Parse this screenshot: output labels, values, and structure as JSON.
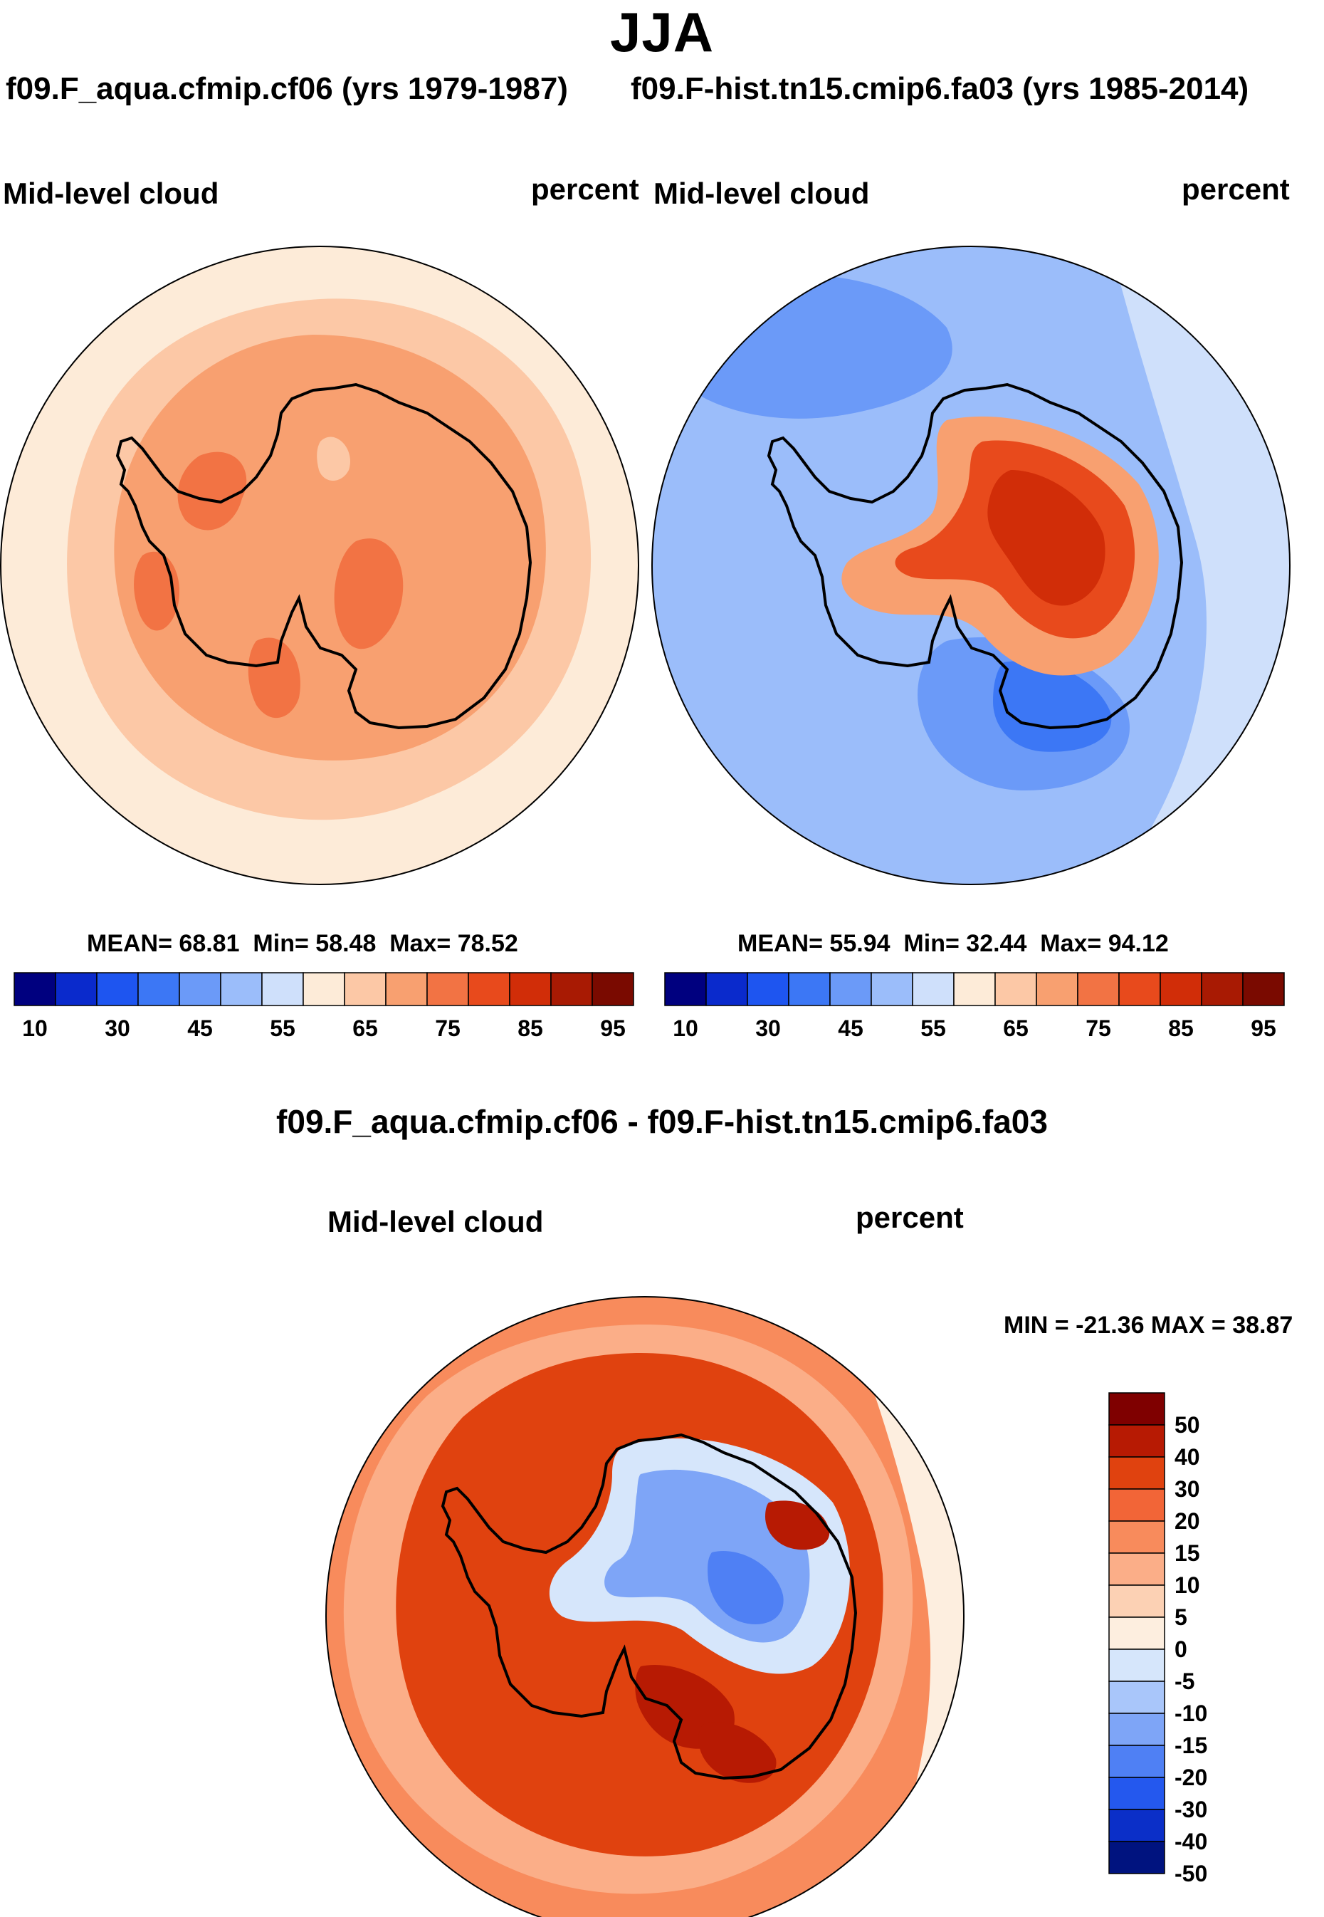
{
  "season": "JJA",
  "panels": {
    "top_left": {
      "case_title": "f09.F_aqua.cfmip.cf06 (yrs 1979-1987)",
      "variable": "Mid-level cloud",
      "units": "percent",
      "stats": {
        "mean_label": "MEAN=",
        "mean": "68.81",
        "min_label": "Min=",
        "min": "58.48",
        "max_label": "Max=",
        "max": "78.52"
      }
    },
    "top_right": {
      "case_title": "f09.F-hist.tn15.cmip6.fa03 (yrs 1985-2014)",
      "variable": "Mid-level cloud",
      "units": "percent",
      "stats": {
        "mean_label": "MEAN=",
        "mean": "55.94",
        "min_label": "Min=",
        "min": "32.44",
        "max_label": "Max=",
        "max": "94.12"
      }
    },
    "bottom": {
      "case_title": "f09.F_aqua.cfmip.cf06 - f09.F-hist.tn15.cmip6.fa03",
      "variable": "Mid-level cloud",
      "units": "percent",
      "stats_text": "MIN = -21.36 MAX =  38.87"
    }
  },
  "abs_colorbar": {
    "labels": [
      "10",
      "30",
      "45",
      "55",
      "65",
      "75",
      "85",
      "95"
    ],
    "colors": [
      "#00007f",
      "#0a2acc",
      "#1e55f0",
      "#3c77f5",
      "#6b9af8",
      "#9bbdfa",
      "#cfe0fb",
      "#fdebd8",
      "#fcc8a6",
      "#f8a070",
      "#f27344",
      "#e84a1c",
      "#d12d08",
      "#a81a03",
      "#7a0a00"
    ]
  },
  "diff_colorbar": {
    "labels": [
      "50",
      "40",
      "30",
      "20",
      "15",
      "10",
      "5",
      "0",
      "-5",
      "-10",
      "-15",
      "-20",
      "-30",
      "-40",
      "-50"
    ],
    "colors": [
      "#7f0000",
      "#b71a03",
      "#e0420f",
      "#f26537",
      "#f88b5c",
      "#fbae88",
      "#fcd1b4",
      "#fdeedf",
      "#d6e6fb",
      "#a9c6fa",
      "#7ea5f7",
      "#4f80f4",
      "#2458ee",
      "#0b2fc8",
      "#00137f"
    ]
  },
  "map_colors": {
    "tl_outer": "#fdebd8",
    "tl_ring": "#fcc8a6",
    "tl_mid": "#f8a070",
    "tl_patch": "#f27344",
    "tr_outer": "#9bbdfa",
    "tr_lighter": "#cfe0fb",
    "tr_blue": "#6b9af8",
    "tr_deep": "#3c77f5",
    "tr_warm1": "#f8a070",
    "tr_warm2": "#e84a1c",
    "tr_warm3": "#d12d08",
    "b_outer": "#f88b5c",
    "b_mid": "#e0420f",
    "b_light": "#fbae88",
    "b_edge": "#fdeedf",
    "b_neg1": "#d6e6fb",
    "b_neg2": "#7ea5f7",
    "b_neg3": "#4f80f4",
    "b_pos": "#b71a03",
    "coast": "#000000"
  }
}
